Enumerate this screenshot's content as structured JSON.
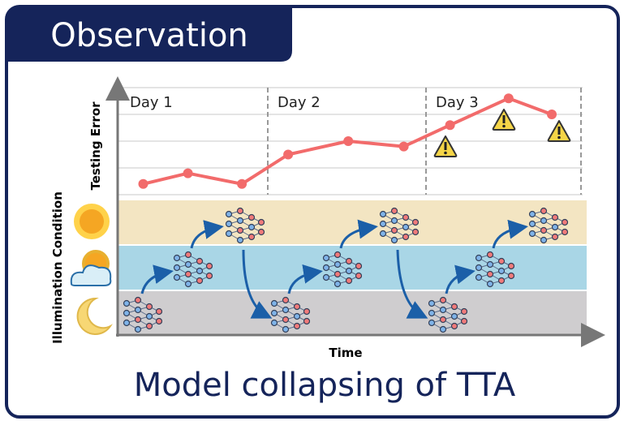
{
  "header": {
    "title": "Observation"
  },
  "caption": "Model collapsing of TTA",
  "axes": {
    "y_label": "Testing Error",
    "band_label": "Illumination Condition",
    "x_label": "Time"
  },
  "chart_data": {
    "type": "line",
    "categories": [
      "Day 1",
      "Day 2",
      "Day 3"
    ],
    "x": [
      0.15,
      0.44,
      0.79,
      1.09,
      1.48,
      1.84,
      2.14,
      2.52,
      2.8
    ],
    "series": [
      {
        "color": "#f26b6b",
        "values": [
          0.4,
          0.8,
          0.4,
          1.5,
          2.0,
          1.8,
          2.6,
          3.6,
          3.0
        ]
      }
    ],
    "xlim": [
      0,
      3
    ],
    "ylim": [
      0,
      4
    ]
  }
}
